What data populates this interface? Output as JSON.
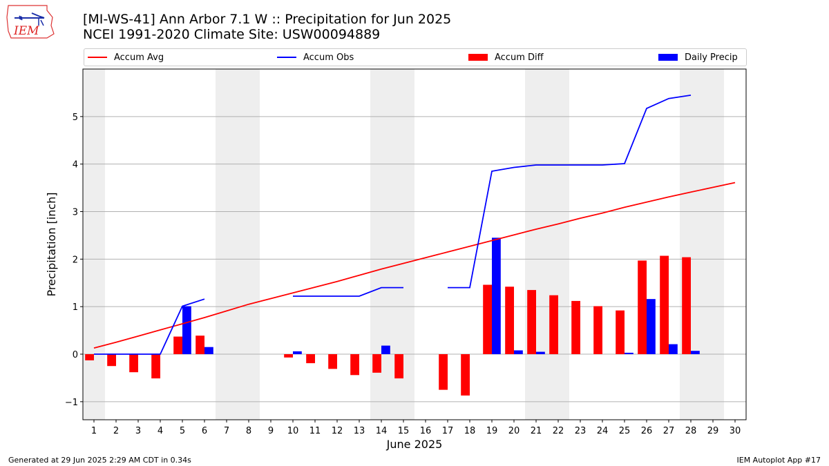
{
  "header": {
    "title_line1": "[MI-WS-41] Ann Arbor 7.1 W :: Precipitation for Jun 2025",
    "title_line2": "NCEI 1991-2020 Climate Site: USW00094889",
    "logo_text": "IEM"
  },
  "footer": {
    "left": "Generated at 29 Jun 2025 2:29 AM CDT in 0.34s",
    "right": "IEM Autoplot App #17"
  },
  "colors": {
    "avg": "#ff0000",
    "obs": "#0000ff",
    "diff": "#ff0000",
    "daily": "#0000ff",
    "shade": "#eeeeee",
    "grid": "#b0b0b0"
  },
  "chart_data": {
    "type": "bar",
    "xlabel": "June 2025",
    "ylabel": "Precipitation [inch]",
    "xlim": [
      0.5,
      30.5
    ],
    "ylim": [
      -1.38,
      6.0
    ],
    "yticks": [
      -1,
      0,
      1,
      2,
      3,
      4,
      5
    ],
    "ytick_labels": [
      "−1",
      "0",
      "1",
      "2",
      "3",
      "4",
      "5"
    ],
    "grid": "y",
    "legend_position": "top",
    "weekend_shading": [
      [
        0.5,
        1.5
      ],
      [
        6.5,
        8.5
      ],
      [
        13.5,
        15.5
      ],
      [
        20.5,
        22.5
      ],
      [
        27.5,
        29.5
      ]
    ],
    "days": [
      1,
      2,
      3,
      4,
      5,
      6,
      7,
      8,
      9,
      10,
      11,
      12,
      13,
      14,
      15,
      16,
      17,
      18,
      19,
      20,
      21,
      22,
      23,
      24,
      25,
      26,
      27,
      28,
      29,
      30
    ],
    "series": [
      {
        "name": "Accum Avg",
        "kind": "line",
        "values": [
          0.13,
          0.25,
          0.38,
          0.51,
          0.64,
          0.77,
          0.91,
          1.05,
          1.17,
          1.29,
          1.41,
          1.53,
          1.66,
          1.79,
          1.91,
          2.03,
          2.15,
          2.27,
          2.39,
          2.51,
          2.63,
          2.74,
          2.86,
          2.97,
          3.09,
          3.2,
          3.31,
          3.41,
          3.51,
          3.61
        ]
      },
      {
        "name": "Accum Obs",
        "kind": "line",
        "values": [
          0.0,
          0.0,
          0.0,
          0.0,
          1.01,
          1.16,
          null,
          null,
          null,
          1.22,
          1.22,
          1.22,
          1.22,
          1.4,
          1.4,
          null,
          1.4,
          1.4,
          3.85,
          3.93,
          3.98,
          3.98,
          3.98,
          3.98,
          4.01,
          5.17,
          5.38,
          5.45,
          null,
          null
        ]
      },
      {
        "name": "Accum Diff",
        "kind": "bar",
        "values": [
          -0.13,
          -0.25,
          -0.38,
          -0.51,
          0.37,
          0.39,
          null,
          null,
          null,
          -0.07,
          -0.19,
          -0.31,
          -0.44,
          -0.39,
          -0.51,
          null,
          -0.75,
          -0.87,
          1.46,
          1.42,
          1.35,
          1.24,
          1.12,
          1.01,
          0.92,
          1.97,
          2.07,
          2.04,
          null,
          null
        ]
      },
      {
        "name": "Daily Precip",
        "kind": "bar",
        "values": [
          0,
          0,
          0,
          0,
          1.01,
          0.15,
          null,
          null,
          null,
          0.06,
          0,
          0,
          0,
          0.18,
          0,
          null,
          0,
          0,
          2.45,
          0.08,
          0.05,
          0,
          0,
          0,
          0.03,
          1.16,
          0.21,
          0.07,
          null,
          null
        ]
      }
    ]
  }
}
